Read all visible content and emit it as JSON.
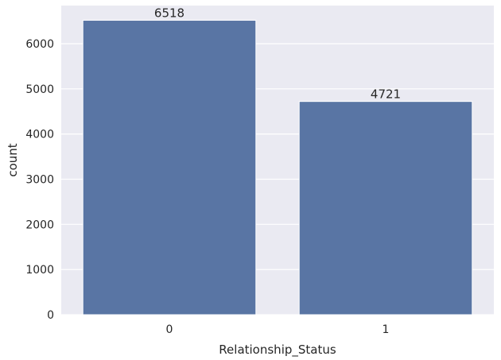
{
  "chart_data": {
    "type": "bar",
    "categories": [
      "0",
      "1"
    ],
    "values": [
      6518,
      4721
    ],
    "data_labels": [
      "6518",
      "4721"
    ],
    "title": "",
    "xlabel": "Relationship_Status",
    "ylabel": "count",
    "ylim": [
      0,
      6844
    ],
    "yticks": [
      0,
      1000,
      2000,
      3000,
      4000,
      5000,
      6000
    ],
    "grid": true,
    "legend": "none"
  },
  "colors": {
    "bar": "#5975a4",
    "plot_background": "#eaeaf2",
    "grid": "#ffffff",
    "text": "#262626"
  }
}
